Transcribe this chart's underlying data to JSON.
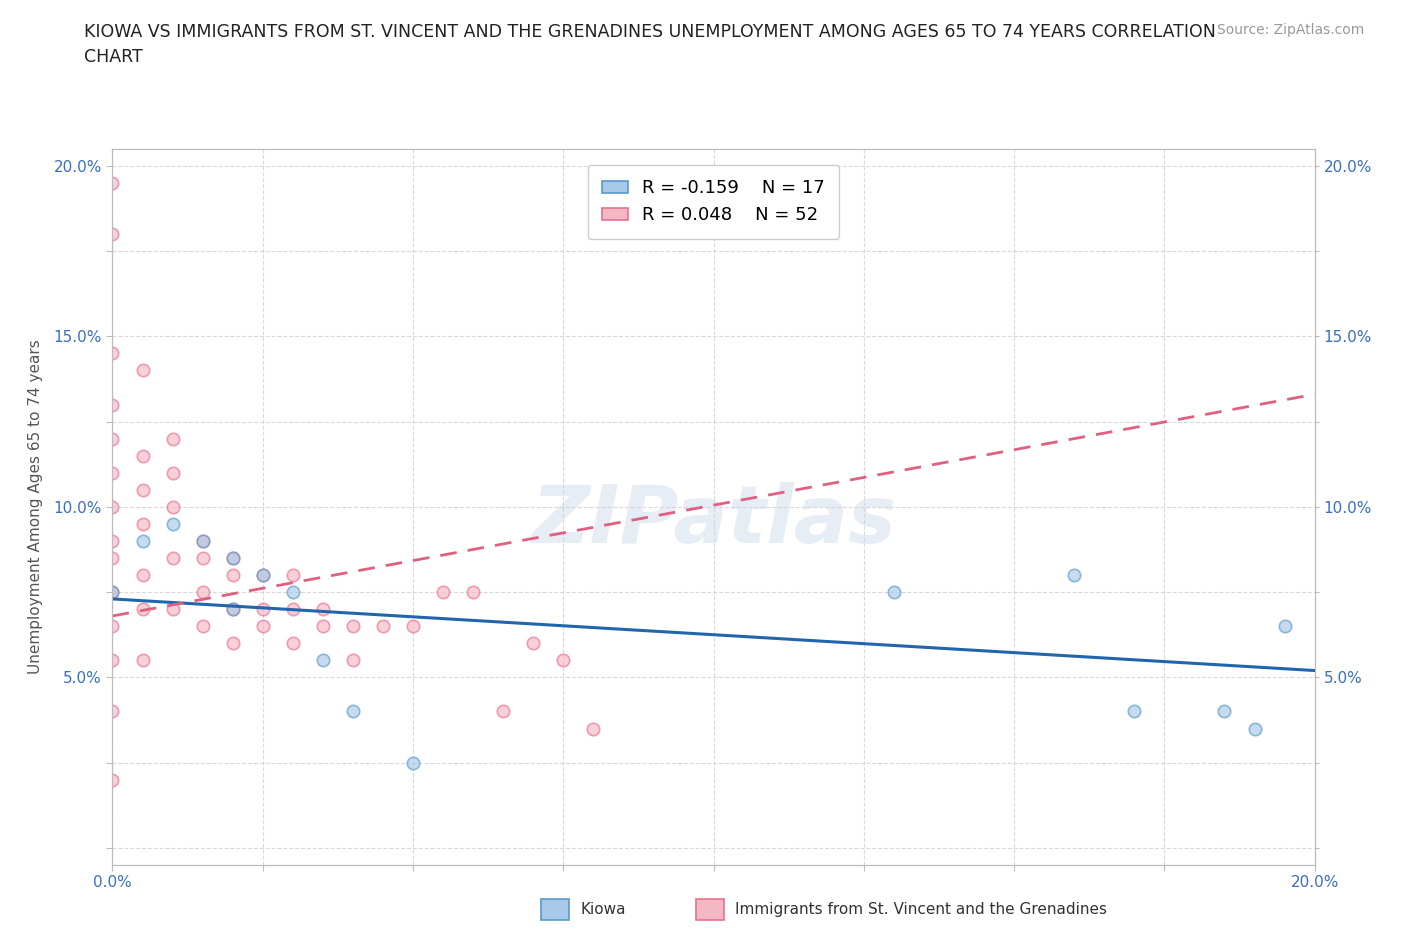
{
  "title_line1": "KIOWA VS IMMIGRANTS FROM ST. VINCENT AND THE GRENADINES UNEMPLOYMENT AMONG AGES 65 TO 74 YEARS CORRELATION",
  "title_line2": "CHART",
  "source_text": "Source: ZipAtlas.com",
  "ylabel": "Unemployment Among Ages 65 to 74 years",
  "xmin": 0.0,
  "xmax": 0.2,
  "ymin": -0.005,
  "ymax": 0.205,
  "xticks": [
    0.0,
    0.025,
    0.05,
    0.075,
    0.1,
    0.125,
    0.15,
    0.175,
    0.2
  ],
  "yticks": [
    0.0,
    0.025,
    0.05,
    0.075,
    0.1,
    0.125,
    0.15,
    0.175,
    0.2
  ],
  "kiowa_color": "#a8c8e8",
  "immigrants_color": "#f4b8c4",
  "kiowa_edge_color": "#5a9ac8",
  "immigrants_edge_color": "#e87090",
  "kiowa_line_color": "#2166ac",
  "immigrants_line_color": "#e06080",
  "legend_r_kiowa": "R = -0.159",
  "legend_n_kiowa": "N = 17",
  "legend_r_immigrants": "R = 0.048",
  "legend_n_immigrants": "N = 52",
  "kiowa_x": [
    0.0,
    0.005,
    0.01,
    0.015,
    0.02,
    0.02,
    0.025,
    0.03,
    0.035,
    0.04,
    0.05,
    0.13,
    0.16,
    0.17,
    0.185,
    0.19,
    0.195
  ],
  "kiowa_y": [
    0.075,
    0.09,
    0.095,
    0.09,
    0.085,
    0.07,
    0.08,
    0.075,
    0.055,
    0.04,
    0.025,
    0.075,
    0.08,
    0.04,
    0.04,
    0.035,
    0.065
  ],
  "immigrants_x": [
    0.0,
    0.0,
    0.0,
    0.0,
    0.0,
    0.0,
    0.0,
    0.0,
    0.0,
    0.0,
    0.0,
    0.0,
    0.0,
    0.0,
    0.005,
    0.005,
    0.005,
    0.005,
    0.005,
    0.005,
    0.005,
    0.01,
    0.01,
    0.01,
    0.01,
    0.01,
    0.015,
    0.015,
    0.015,
    0.015,
    0.02,
    0.02,
    0.02,
    0.02,
    0.025,
    0.025,
    0.025,
    0.03,
    0.03,
    0.03,
    0.035,
    0.035,
    0.04,
    0.04,
    0.045,
    0.05,
    0.055,
    0.06,
    0.065,
    0.07,
    0.075,
    0.08
  ],
  "immigrants_y": [
    0.195,
    0.18,
    0.145,
    0.13,
    0.12,
    0.11,
    0.1,
    0.09,
    0.085,
    0.075,
    0.065,
    0.055,
    0.04,
    0.02,
    0.14,
    0.115,
    0.105,
    0.095,
    0.08,
    0.07,
    0.055,
    0.12,
    0.11,
    0.1,
    0.085,
    0.07,
    0.09,
    0.085,
    0.075,
    0.065,
    0.085,
    0.08,
    0.07,
    0.06,
    0.08,
    0.07,
    0.065,
    0.08,
    0.07,
    0.06,
    0.07,
    0.065,
    0.065,
    0.055,
    0.065,
    0.065,
    0.075,
    0.075,
    0.04,
    0.06,
    0.055,
    0.035
  ],
  "watermark_text": "ZIPatlas",
  "background_color": "#ffffff",
  "grid_color": "#d0d0d0",
  "marker_size": 80,
  "marker_alpha": 0.65,
  "marker_linewidth": 1.2
}
